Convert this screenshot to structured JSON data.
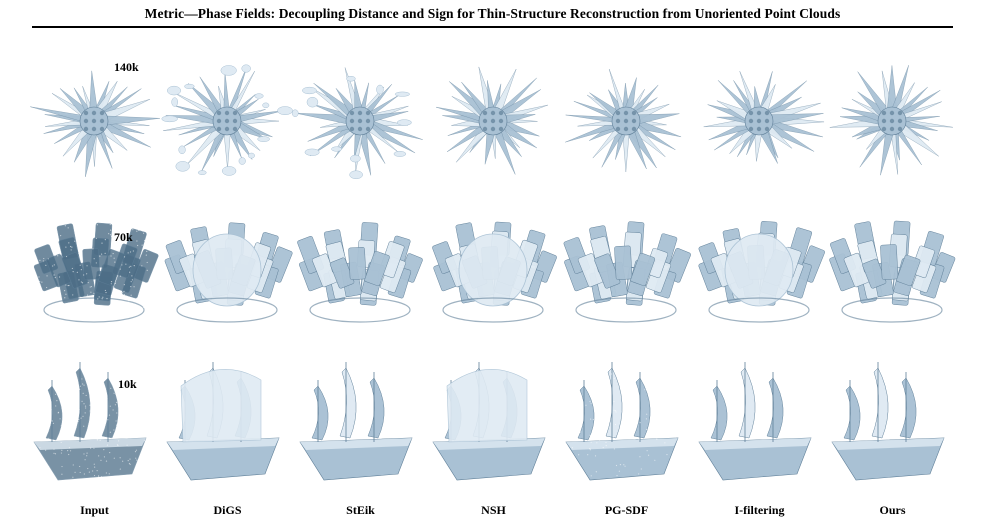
{
  "title": "Metric—Phase Fields: Decoupling Distance and Sign for Thin-Structure Reconstruction from Unoriented Point Clouds",
  "columns": [
    "Input",
    "DiGS",
    "StEik",
    "NSH",
    "PG-SDF",
    "I-filtering",
    "Ours"
  ],
  "rows": [
    {
      "count": "140k",
      "shape": "sea-urchin"
    },
    {
      "count": "70k",
      "shape": "flower-pot"
    },
    {
      "count": "10k",
      "shape": "sailing-ship"
    }
  ],
  "colors": {
    "surface_light": "#dfeaf3",
    "surface_mid": "#a9c1d4",
    "surface_dark": "#5f7f98",
    "points": "#4d6e87"
  }
}
